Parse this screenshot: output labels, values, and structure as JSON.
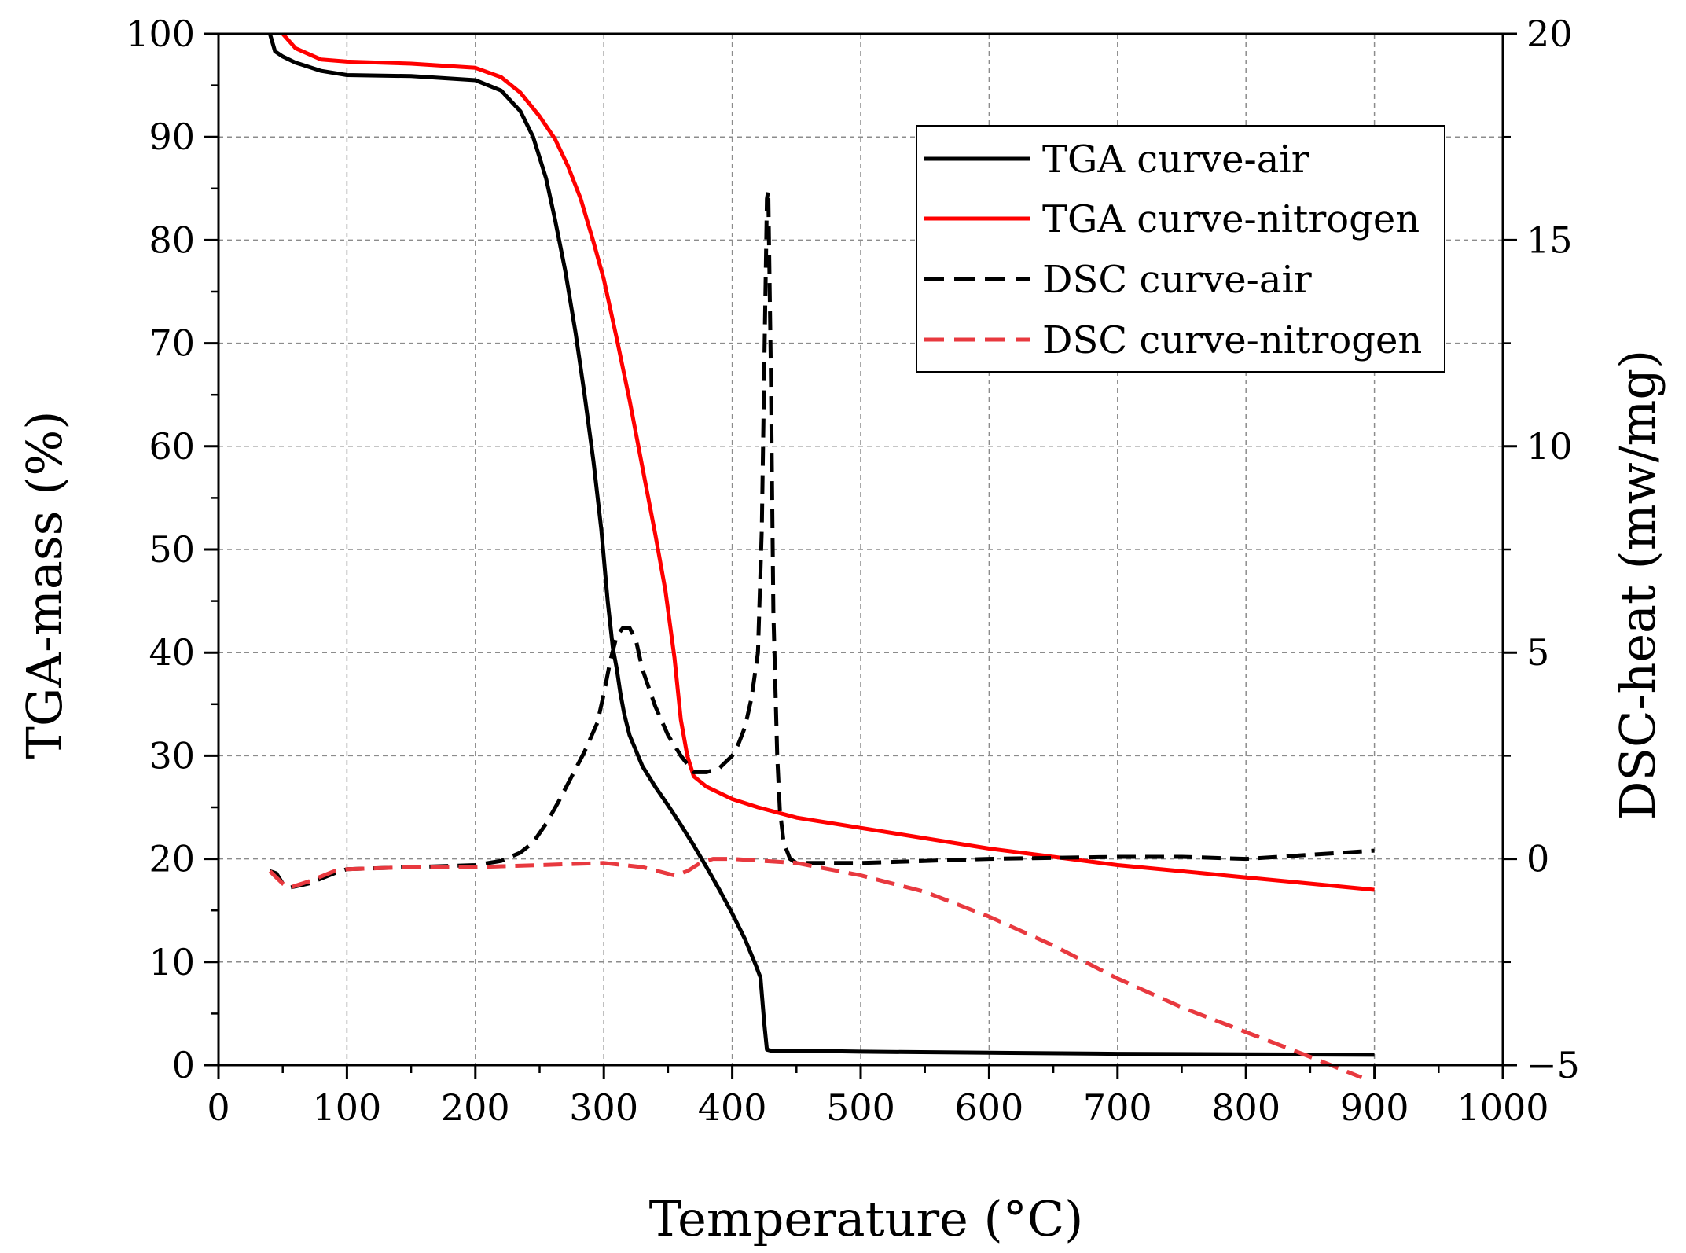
{
  "chart_data": {
    "type": "line",
    "title": "",
    "xlabel": "Temperature (°C)",
    "ylabel_left": "TGA-mass (%)",
    "ylabel_right": "DSC-heat (mw/mg)",
    "xlim": [
      0,
      1000
    ],
    "ylim_left": [
      0,
      100
    ],
    "ylim_right": [
      -5,
      20
    ],
    "x_ticks": [
      "0",
      "100",
      "200",
      "300",
      "400",
      "500",
      "600",
      "700",
      "800",
      "900",
      "1000"
    ],
    "y_left_ticks": [
      "0",
      "10",
      "20",
      "30",
      "40",
      "50",
      "60",
      "70",
      "80",
      "90",
      "100"
    ],
    "y_right_ticks": [
      "−5",
      "0",
      "5",
      "10",
      "15",
      "20"
    ],
    "grid": true,
    "legend_position": "top-right",
    "series": [
      {
        "name": "TGA curve-air",
        "axis": "left",
        "color": "#000000",
        "style": "solid",
        "x": [
          40,
          44,
          50,
          60,
          80,
          100,
          150,
          200,
          220,
          235,
          245,
          255,
          262,
          270,
          278,
          285,
          292,
          298,
          303,
          307,
          310,
          313,
          316,
          320,
          325,
          330,
          340,
          350,
          360,
          370,
          380,
          390,
          400,
          410,
          418,
          422,
          425,
          427,
          430,
          450,
          500,
          600,
          700,
          800,
          900
        ],
        "y": [
          100,
          98.3,
          97.8,
          97.2,
          96.4,
          96,
          95.9,
          95.5,
          94.5,
          92.5,
          90,
          86,
          82,
          77,
          71,
          65,
          58.5,
          52,
          45,
          40.5,
          38.5,
          36,
          34,
          32,
          30.5,
          29,
          27,
          25.2,
          23.3,
          21.3,
          19.2,
          17,
          14.7,
          12.2,
          9.8,
          8.5,
          4,
          1.5,
          1.4,
          1.4,
          1.3,
          1.2,
          1.1,
          1.05,
          1.0
        ]
      },
      {
        "name": "TGA curve-nitrogen",
        "axis": "left",
        "color": "#ff0000",
        "style": "solid",
        "x": [
          50,
          60,
          80,
          100,
          150,
          200,
          220,
          235,
          250,
          262,
          272,
          282,
          292,
          300,
          310,
          320,
          330,
          340,
          348,
          355,
          360,
          365,
          370,
          380,
          400,
          420,
          450,
          500,
          600,
          700,
          800,
          900
        ],
        "y": [
          100,
          98.6,
          97.5,
          97.3,
          97.1,
          96.7,
          95.8,
          94.3,
          92,
          89.8,
          87.2,
          84,
          79.8,
          76.2,
          70.5,
          64.5,
          58,
          51.5,
          46,
          39.5,
          33.5,
          30,
          28,
          27,
          25.8,
          25,
          24,
          23,
          21,
          19.4,
          18.2,
          17
        ]
      },
      {
        "name": "DSC curve-air",
        "axis": "right",
        "color": "#000000",
        "style": "dashed",
        "x": [
          40,
          45,
          50,
          55,
          70,
          90,
          100,
          150,
          200,
          220,
          235,
          245,
          255,
          265,
          275,
          285,
          295,
          300,
          305,
          310,
          315,
          320,
          325,
          330,
          340,
          350,
          360,
          370,
          380,
          390,
          400,
          405,
          410,
          415,
          420,
          423,
          425,
          427,
          428,
          430,
          432,
          435,
          437,
          440,
          445,
          450,
          500,
          600,
          700,
          750,
          800,
          850,
          900
        ],
        "y": [
          -0.3,
          -0.35,
          -0.6,
          -0.7,
          -0.6,
          -0.35,
          -0.25,
          -0.2,
          -0.15,
          -0.05,
          0.15,
          0.4,
          0.85,
          1.4,
          2.0,
          2.6,
          3.3,
          4.0,
          4.8,
          5.4,
          5.6,
          5.6,
          5.3,
          4.6,
          3.7,
          3.0,
          2.5,
          2.1,
          2.1,
          2.2,
          2.5,
          2.8,
          3.2,
          3.9,
          5.0,
          8.0,
          12.0,
          16.0,
          16.2,
          12.0,
          6.0,
          2.5,
          1.2,
          0.4,
          0.0,
          -0.1,
          -0.1,
          0.0,
          0.05,
          0.05,
          0.0,
          0.1,
          0.2
        ]
      },
      {
        "name": "DSC curve-nitrogen",
        "axis": "right",
        "color": "#e8393f",
        "style": "dashed",
        "x": [
          40,
          45,
          50,
          55,
          60,
          70,
          90,
          100,
          150,
          200,
          250,
          300,
          330,
          355,
          365,
          375,
          385,
          400,
          450,
          500,
          550,
          600,
          650,
          700,
          750,
          800,
          850,
          890
        ],
        "y": [
          -0.3,
          -0.45,
          -0.6,
          -0.7,
          -0.65,
          -0.55,
          -0.3,
          -0.25,
          -0.2,
          -0.2,
          -0.15,
          -0.1,
          -0.2,
          -0.4,
          -0.3,
          -0.1,
          0.0,
          0.0,
          -0.1,
          -0.4,
          -0.8,
          -1.4,
          -2.1,
          -2.9,
          -3.6,
          -4.2,
          -4.8,
          -5.3
        ]
      }
    ]
  }
}
